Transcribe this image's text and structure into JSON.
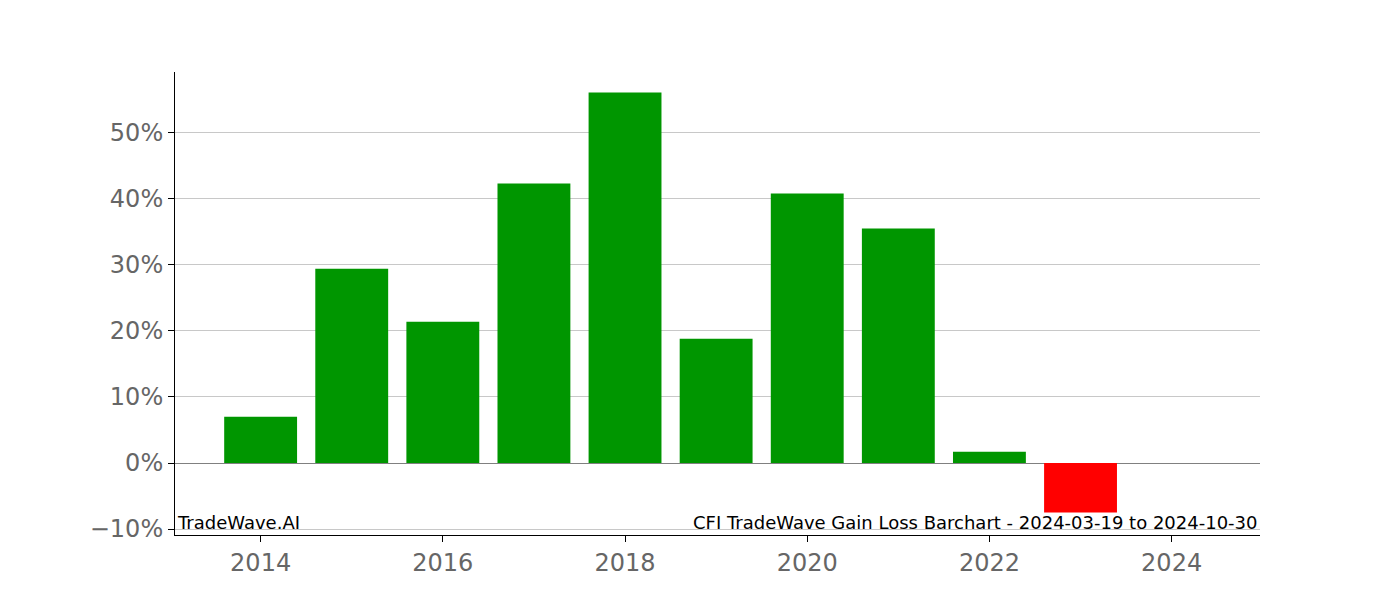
{
  "chart_data": {
    "type": "bar",
    "x": [
      2014,
      2015,
      2016,
      2017,
      2018,
      2019,
      2020,
      2021,
      2022,
      2023
    ],
    "values": [
      7.0,
      29.4,
      21.4,
      42.3,
      56.1,
      18.8,
      40.8,
      35.5,
      1.7,
      -7.5
    ],
    "colors": [
      "#009600",
      "#009600",
      "#009600",
      "#009600",
      "#009600",
      "#009600",
      "#009600",
      "#009600",
      "#009600",
      "#ff0000"
    ],
    "xlim": [
      2013.06,
      2024.97
    ],
    "xticks": [
      2014,
      2016,
      2018,
      2020,
      2022,
      2024
    ],
    "ylim": [
      -10.9,
      59.2
    ],
    "yticks": [
      {
        "value": -10,
        "label": "−10%"
      },
      {
        "value": 0,
        "label": "0%"
      },
      {
        "value": 10,
        "label": "10%"
      },
      {
        "value": 20,
        "label": "20%"
      },
      {
        "value": 30,
        "label": "30%"
      },
      {
        "value": 40,
        "label": "40%"
      },
      {
        "value": 50,
        "label": "50%"
      }
    ],
    "grid": true,
    "annotations": [
      "TradeWave.AI",
      "CFI TradeWave Gain Loss Barchart - 2024-03-19 to 2024-10-30"
    ]
  }
}
